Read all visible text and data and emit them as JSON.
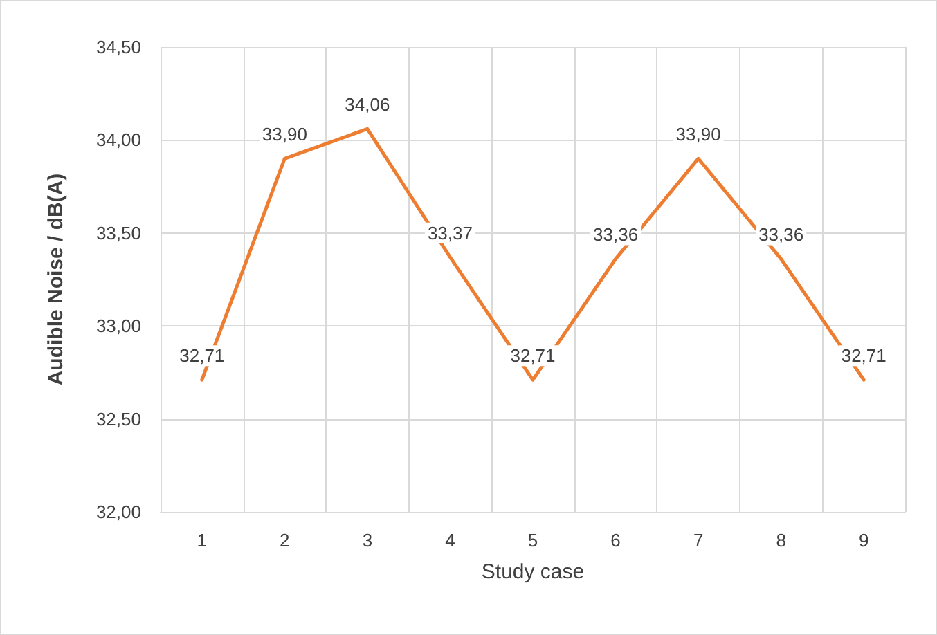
{
  "chart_data": {
    "type": "line",
    "xlabel": "Study case",
    "ylabel": "Audible Noise / dB(A)",
    "categories": [
      "1",
      "2",
      "3",
      "4",
      "5",
      "6",
      "7",
      "8",
      "9"
    ],
    "series": [
      {
        "color": "#ed7d31",
        "values": [
          32.71,
          33.9,
          34.06,
          33.37,
          32.71,
          33.36,
          33.9,
          33.36,
          32.71
        ],
        "value_labels": [
          "32,71",
          "33,90",
          "34,06",
          "33,37",
          "32,71",
          "33,36",
          "33,90",
          "33,36",
          "32,71"
        ]
      }
    ],
    "ylim": [
      32,
      34.5
    ],
    "yticks": [
      {
        "value": 32,
        "label": "32,00"
      },
      {
        "value": 32.5,
        "label": "32,50"
      },
      {
        "value": 33,
        "label": "33,00"
      },
      {
        "value": 33.5,
        "label": "33,50"
      },
      {
        "value": 34,
        "label": "34,00"
      },
      {
        "value": 34.5,
        "label": "34,50"
      }
    ],
    "grid": true,
    "marker": "none",
    "line_style": "solid"
  }
}
